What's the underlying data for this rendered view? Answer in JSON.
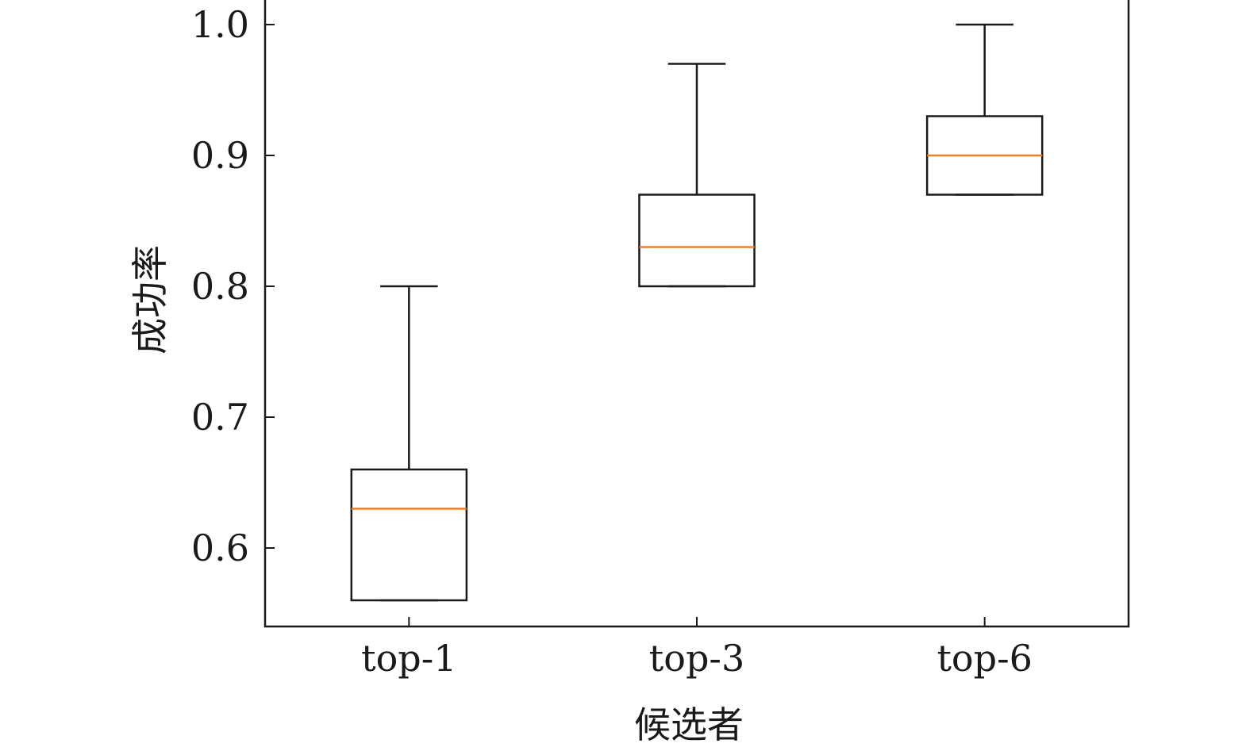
{
  "chart_data": {
    "type": "box",
    "title": "",
    "xlabel": "候选者",
    "ylabel": "成功率",
    "ylim": [
      0.54,
      1.02
    ],
    "yticks": [
      "0.6",
      "0.7",
      "0.8",
      "0.9",
      "1.0"
    ],
    "grid": false,
    "categories": [
      "top-1",
      "top-3",
      "top-6"
    ],
    "boxes": [
      {
        "category": "top-1",
        "whisker_low": 0.56,
        "q1": 0.56,
        "median": 0.63,
        "q3": 0.66,
        "whisker_high": 0.8
      },
      {
        "category": "top-3",
        "whisker_low": 0.8,
        "q1": 0.8,
        "median": 0.83,
        "q3": 0.87,
        "whisker_high": 0.97
      },
      {
        "category": "top-6",
        "whisker_low": 0.87,
        "q1": 0.87,
        "median": 0.9,
        "q3": 0.93,
        "whisker_high": 1.0
      }
    ],
    "colors": {
      "box": "#1a1a1a",
      "median": "#f07f2c",
      "axes": "#1a1a1a"
    }
  }
}
